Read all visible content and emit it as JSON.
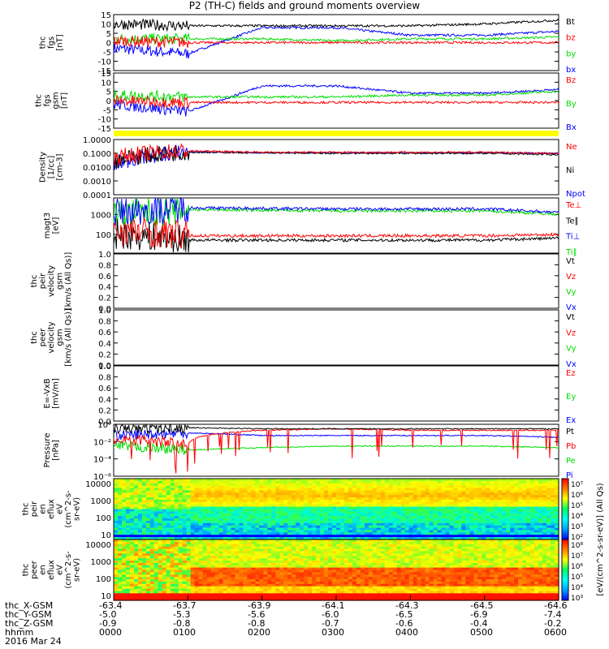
{
  "title": "P2 (TH-C) fields and ground moments overview",
  "colors": {
    "black": "#000000",
    "red": "#ff0000",
    "green": "#00dd00",
    "blue": "#0000ff",
    "yellow": "#ffff00"
  },
  "panels": [
    {
      "id": "fgs",
      "ylabel": [
        "thc",
        "fgs",
        "[nT]"
      ],
      "yticks": [
        "15",
        "10",
        "5",
        "0",
        "-5",
        "-10",
        "-15"
      ],
      "legend": [
        {
          "text": "Bt",
          "color": "black"
        },
        {
          "text": "bz",
          "color": "red"
        },
        {
          "text": "by",
          "color": "green"
        },
        {
          "text": "bx",
          "color": "blue"
        }
      ]
    },
    {
      "id": "fgs_gsm",
      "ylabel": [
        "thc",
        "fgs",
        "gsm",
        "[nT]"
      ],
      "yticks": [
        "15",
        "10",
        "5",
        "0",
        "-5",
        "-10",
        "-15"
      ],
      "legend": [
        {
          "text": "Bz",
          "color": "red"
        },
        {
          "text": "By",
          "color": "green"
        },
        {
          "text": "Bx",
          "color": "blue"
        }
      ]
    },
    {
      "id": "density",
      "ylabel": [
        "Density",
        "[1/cc]",
        "[cm-3]"
      ],
      "yticks": [
        "1.0000",
        "0.1000",
        "0.0100",
        "0.0010",
        "0.0001"
      ],
      "legend": [
        {
          "text": "Ne",
          "color": "red"
        },
        {
          "text": "Ni",
          "color": "black"
        },
        {
          "text": "Npot",
          "color": "blue"
        }
      ]
    },
    {
      "id": "temp",
      "ylabel": [
        "magt3",
        "[eV]"
      ],
      "yticks": [
        "1000",
        "100"
      ],
      "legend": [
        {
          "text": "Te⊥",
          "color": "red"
        },
        {
          "text": "Te∥",
          "color": "black"
        },
        {
          "text": "Ti⊥",
          "color": "blue"
        },
        {
          "text": "Ti∥",
          "color": "green"
        }
      ]
    },
    {
      "id": "peir_vel",
      "ylabel": [
        "thc",
        "peir",
        "velocity",
        "gsm",
        "[km/s (All Qs)]"
      ],
      "yticks": [
        "1.0",
        "0.8",
        "0.6",
        "0.4",
        "0.2",
        "0.0"
      ],
      "legend": [
        {
          "text": "Vt",
          "color": "black"
        },
        {
          "text": "Vz",
          "color": "red"
        },
        {
          "text": "Vy",
          "color": "green"
        },
        {
          "text": "Vx",
          "color": "blue"
        }
      ]
    },
    {
      "id": "peer_vel",
      "ylabel": [
        "thc",
        "peer",
        "velocity",
        "gsm",
        "[km/s (All Qs)]"
      ],
      "yticks": [
        "1.0",
        "0.8",
        "0.6",
        "0.4",
        "0.2",
        "0.0"
      ],
      "legend": [
        {
          "text": "Vt",
          "color": "black"
        },
        {
          "text": "Vz",
          "color": "red"
        },
        {
          "text": "Vy",
          "color": "green"
        },
        {
          "text": "Vx",
          "color": "blue"
        }
      ]
    },
    {
      "id": "efield",
      "ylabel": [
        "E=-VxB",
        "[mV/m]"
      ],
      "yticks": [
        "1.0",
        "0.8",
        "0.6",
        "0.4",
        "0.2",
        "0.0"
      ],
      "legend": [
        {
          "text": "Ez",
          "color": "red"
        },
        {
          "text": "Ey",
          "color": "green"
        },
        {
          "text": "Ex",
          "color": "blue"
        }
      ]
    },
    {
      "id": "pressure",
      "ylabel": [
        "Pressure",
        "[nPa]"
      ],
      "yticks": [
        "10⁰",
        "10⁻²",
        "10⁻⁴",
        "10⁻⁶"
      ],
      "legend": [
        {
          "text": "Pt",
          "color": "black"
        },
        {
          "text": "Pb",
          "color": "red"
        },
        {
          "text": "Pe",
          "color": "green"
        },
        {
          "text": "Pi",
          "color": "blue"
        }
      ]
    },
    {
      "id": "peir_spec",
      "ylabel": [
        "thc",
        "peir",
        "en",
        "eflux",
        "eV",
        "(cm^2-s-",
        "sr-eV)"
      ],
      "yticks": [
        "10000",
        "1000",
        "100",
        "10"
      ],
      "cbar_ticks": [
        "10⁷",
        "10⁶",
        "10⁵",
        "10⁴",
        "10³",
        "10²"
      ],
      "cbar_label": "[eV/(cm^2-s-sr-eV)] (All Qs)"
    },
    {
      "id": "peer_spec",
      "ylabel": [
        "thc",
        "peer",
        "en",
        "eflux",
        "eV",
        "(cm^2-s-",
        "sr-eV)"
      ],
      "yticks": [
        "10000",
        "1000",
        "100",
        "10"
      ],
      "cbar_ticks": [
        "10⁸",
        "10⁷",
        "10⁶",
        "10⁵",
        "10⁴",
        "10³"
      ],
      "cbar_label": "[eV/(cm^2-s-sr-eV)] (All Qs)"
    }
  ],
  "footer": {
    "row_labels": [
      "thc_X-GSM",
      "thc_Y-GSM",
      "thc_Z-GSM",
      "hhmm",
      "2016 Mar 24"
    ],
    "columns": [
      [
        "-63.4",
        "-5.0",
        "-0.9",
        "0000"
      ],
      [
        "-63.7",
        "-5.3",
        "-0.8",
        "0100"
      ],
      [
        "-63.9",
        "-5.6",
        "-0.8",
        "0200"
      ],
      [
        "-64.1",
        "-6.0",
        "-0.7",
        "0300"
      ],
      [
        "-64.3",
        "-6.5",
        "-0.6",
        "0400"
      ],
      [
        "-64.5",
        "-6.9",
        "-0.4",
        "0500"
      ],
      [
        "-64.6",
        "-7.4",
        "-0.2",
        "0600"
      ]
    ]
  },
  "chart_data": {
    "type": "line",
    "title": "P2 (TH-C) fields and ground moments overview",
    "x": [
      "0000",
      "0100",
      "0200",
      "0300",
      "0400",
      "0500",
      "0600"
    ],
    "xlabel": "hhmm",
    "panels": [
      {
        "name": "thc fgs [nT]",
        "ylim": [
          -15,
          15
        ],
        "series": [
          {
            "name": "Bt",
            "values": [
              10,
              9,
              9,
              9,
              9,
              10,
              12
            ]
          },
          {
            "name": "bz",
            "values": [
              1,
              0,
              0,
              0,
              0,
              0,
              0
            ]
          },
          {
            "name": "by",
            "values": [
              2,
              2,
              2,
              1,
              2,
              2,
              3
            ]
          },
          {
            "name": "bx",
            "values": [
              -3,
              -6,
              8,
              8,
              4,
              4,
              6
            ]
          }
        ]
      },
      {
        "name": "thc fgs gsm [nT]",
        "ylim": [
          -15,
          15
        ],
        "series": [
          {
            "name": "Bz",
            "values": [
              0,
              -1,
              -1,
              -1,
              -1,
              -1,
              -1
            ]
          },
          {
            "name": "By",
            "values": [
              3,
              2,
              2,
              2,
              3,
              3,
              5
            ]
          },
          {
            "name": "Bx",
            "values": [
              -2,
              -6,
              8,
              8,
              4,
              4,
              6
            ]
          }
        ]
      },
      {
        "name": "Density [1/cc]",
        "ylim": [
          0.0001,
          1
        ],
        "scale": "log",
        "series": [
          {
            "name": "Ne",
            "values": [
              0.05,
              0.15,
              0.12,
              0.12,
              0.12,
              0.12,
              0.1
            ]
          },
          {
            "name": "Ni",
            "values": [
              0.03,
              0.12,
              0.11,
              0.1,
              0.1,
              0.1,
              0.08
            ]
          },
          {
            "name": "Npot",
            "values": [
              0.01,
              0.13,
              0.11,
              0.11,
              0.11,
              0.11,
              0.1
            ]
          }
        ]
      },
      {
        "name": "magt3 [eV]",
        "ylim": [
          30,
          5000
        ],
        "scale": "log",
        "series": [
          {
            "name": "Te⊥",
            "values": [
              250,
              150,
              150,
              150,
              150,
              150,
              170
            ]
          },
          {
            "name": "Te∥",
            "values": [
              180,
              100,
              100,
              100,
              100,
              100,
              120
            ]
          },
          {
            "name": "Ti⊥",
            "values": [
              1300,
              2000,
              1900,
              1800,
              1800,
              1800,
              1300
            ]
          },
          {
            "name": "Ti∥",
            "values": [
              1000,
              1700,
              1600,
              1500,
              1500,
              1500,
              1100
            ]
          }
        ]
      },
      {
        "name": "Pressure [nPa]",
        "ylim": [
          1e-06,
          1
        ],
        "scale": "log",
        "series": [
          {
            "name": "Pt",
            "values": [
              0.3,
              0.4,
              0.3,
              0.3,
              0.3,
              0.3,
              0.3
            ]
          },
          {
            "name": "Pb",
            "values": [
              0.02,
              0.004,
              0.2,
              0.3,
              0.2,
              0.2,
              0.2
            ]
          },
          {
            "name": "Pe",
            "values": [
              0.003,
              0.001,
              0.002,
              0.003,
              0.003,
              0.003,
              0.002
            ]
          },
          {
            "name": "Pi",
            "values": [
              0.05,
              0.1,
              0.05,
              0.05,
              0.05,
              0.05,
              0.03
            ]
          }
        ]
      }
    ]
  }
}
